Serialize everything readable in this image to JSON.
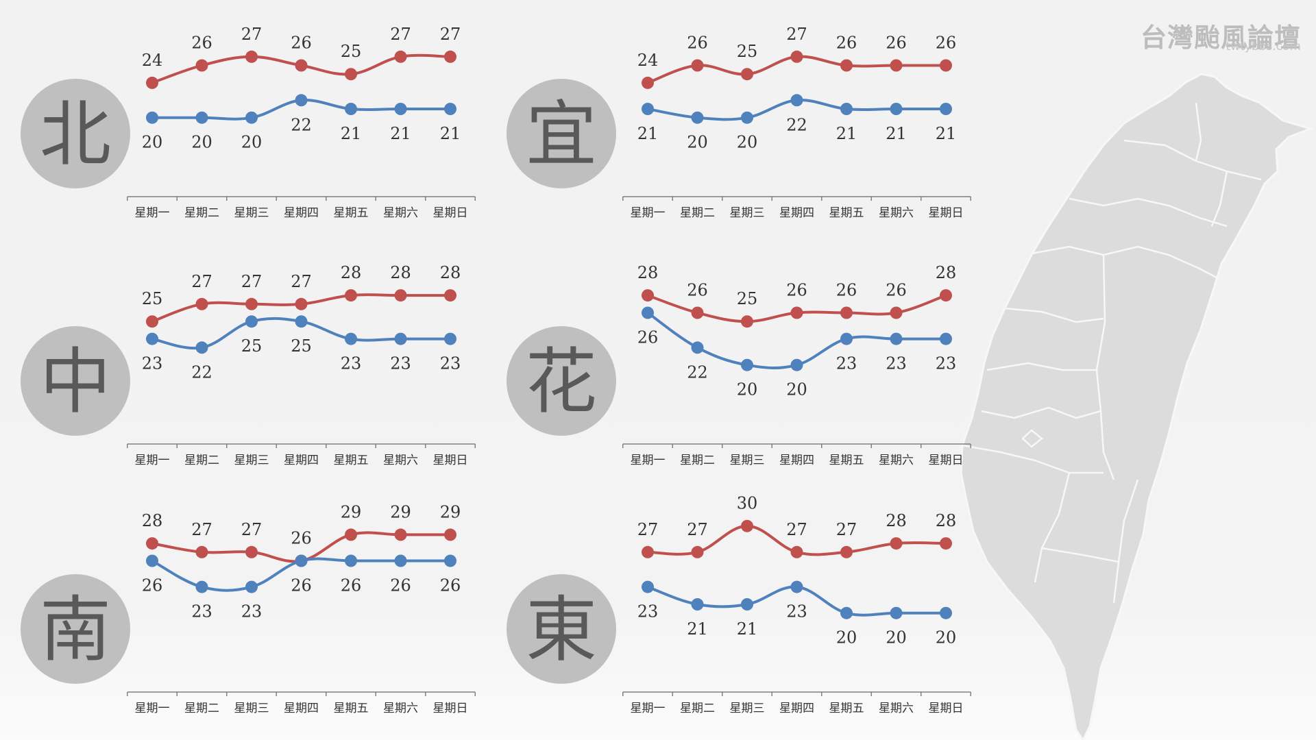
{
  "watermark": {
    "title": "台灣颱風論壇",
    "url": "twtybbs.com"
  },
  "colors": {
    "high": "#c0504d",
    "low": "#4f81bd",
    "badge": "#bfbfbf",
    "badge_text": "#595959",
    "axis": "#808080",
    "label": "#333333",
    "map_fill": "#dcdcdc",
    "map_line": "#f7f7f7"
  },
  "map": {
    "icon": "taiwan-map-icon"
  },
  "days": [
    "星期一",
    "星期二",
    "星期三",
    "星期四",
    "星期五",
    "星期六",
    "星期日"
  ],
  "chart_data": [
    {
      "type": "line",
      "region": "北",
      "categories": [
        "星期一",
        "星期二",
        "星期三",
        "星期四",
        "星期五",
        "星期六",
        "星期日"
      ],
      "series": [
        {
          "values": [
            24,
            26,
            27,
            26,
            25,
            27,
            27
          ]
        },
        {
          "values": [
            20,
            20,
            20,
            22,
            21,
            21,
            21
          ]
        }
      ]
    },
    {
      "type": "line",
      "region": "宜",
      "categories": [
        "星期一",
        "星期二",
        "星期三",
        "星期四",
        "星期五",
        "星期六",
        "星期日"
      ],
      "series": [
        {
          "values": [
            24,
            26,
            25,
            27,
            26,
            26,
            26
          ]
        },
        {
          "values": [
            21,
            20,
            20,
            22,
            21,
            21,
            21
          ]
        }
      ]
    },
    {
      "type": "line",
      "region": "中",
      "categories": [
        "星期一",
        "星期二",
        "星期三",
        "星期四",
        "星期五",
        "星期六",
        "星期日"
      ],
      "series": [
        {
          "values": [
            25,
            27,
            27,
            27,
            28,
            28,
            28
          ]
        },
        {
          "values": [
            23,
            22,
            25,
            25,
            23,
            23,
            23
          ]
        }
      ]
    },
    {
      "type": "line",
      "region": "花",
      "categories": [
        "星期一",
        "星期二",
        "星期三",
        "星期四",
        "星期五",
        "星期六",
        "星期日"
      ],
      "series": [
        {
          "values": [
            28,
            26,
            25,
            26,
            26,
            26,
            28
          ]
        },
        {
          "values": [
            26,
            22,
            20,
            20,
            23,
            23,
            23
          ]
        }
      ]
    },
    {
      "type": "line",
      "region": "南",
      "categories": [
        "星期一",
        "星期二",
        "星期三",
        "星期四",
        "星期五",
        "星期六",
        "星期日"
      ],
      "series": [
        {
          "values": [
            28,
            27,
            27,
            26,
            29,
            29,
            29
          ]
        },
        {
          "values": [
            26,
            23,
            23,
            26,
            26,
            26,
            26
          ]
        }
      ]
    },
    {
      "type": "line",
      "region": "東",
      "categories": [
        "星期一",
        "星期二",
        "星期三",
        "星期四",
        "星期五",
        "星期六",
        "星期日"
      ],
      "series": [
        {
          "values": [
            27,
            27,
            30,
            27,
            27,
            28,
            28
          ]
        },
        {
          "values": [
            23,
            21,
            21,
            23,
            20,
            20,
            20
          ]
        }
      ]
    }
  ]
}
